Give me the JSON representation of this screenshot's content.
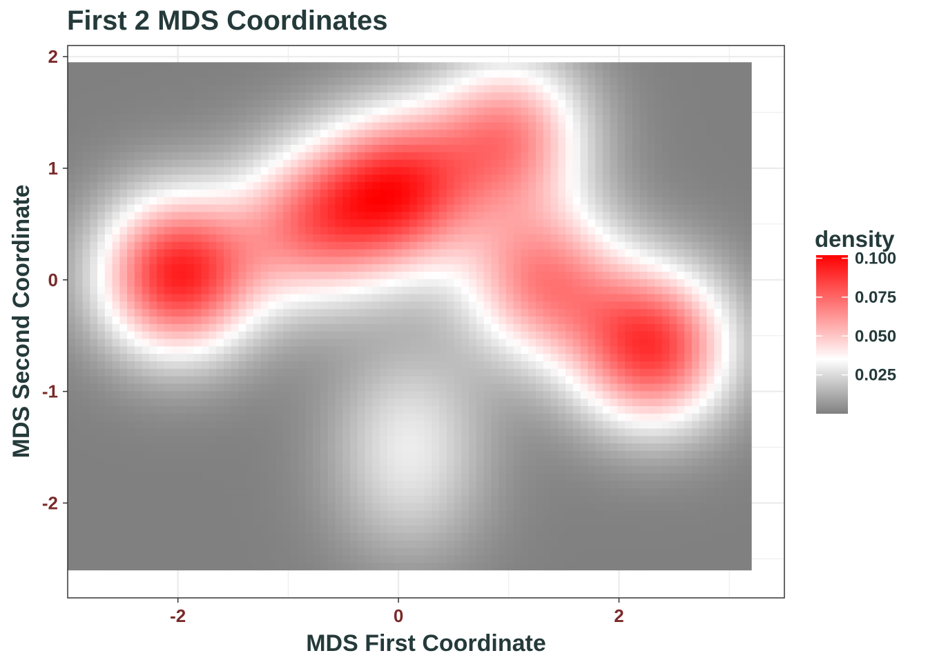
{
  "chart_data": {
    "type": "heatmap",
    "title": "First 2 MDS Coordinates",
    "xlabel": "MDS First Coordinate",
    "ylabel": "MDS Second Coordinate",
    "xlim": [
      -3.0,
      3.5
    ],
    "ylim": [
      -2.85,
      2.1
    ],
    "x_range": [
      -3.0,
      3.2
    ],
    "y_range": [
      -2.6,
      1.95
    ],
    "x_ticks": [
      -2,
      0,
      2
    ],
    "y_ticks": [
      2,
      1,
      0,
      -1,
      -2
    ],
    "grid": true,
    "legend": {
      "title": "density",
      "position": "right",
      "ticks": [
        0.1,
        0.075,
        0.05,
        0.025
      ],
      "tick_labels": [
        "0.100",
        "0.075",
        "0.050",
        "0.025"
      ],
      "range": [
        0.0,
        0.102
      ]
    },
    "color_scale": {
      "low": "#808080",
      "mid": "#ffffff",
      "high": "#ff0000",
      "midpoint": 0.035
    },
    "density_peaks": [
      {
        "x": -2.0,
        "y": 0.05,
        "value": 0.102
      },
      {
        "x": 0.0,
        "y": 0.8,
        "value": 0.09
      },
      {
        "x": 2.3,
        "y": -0.6,
        "value": 0.095
      },
      {
        "x": 1.0,
        "y": 1.3,
        "value": 0.07
      },
      {
        "x": -0.8,
        "y": 0.5,
        "value": 0.065
      },
      {
        "x": 1.3,
        "y": 0.0,
        "value": 0.07
      },
      {
        "x": 0.1,
        "y": -1.2,
        "value": 0.022
      },
      {
        "x": 0.1,
        "y": -1.9,
        "value": 0.02
      }
    ],
    "colors": {
      "title": "#253a3a",
      "tick_labels": "#7a2a2a",
      "grid": "#ebebeb",
      "panel_border": "#333333"
    }
  }
}
